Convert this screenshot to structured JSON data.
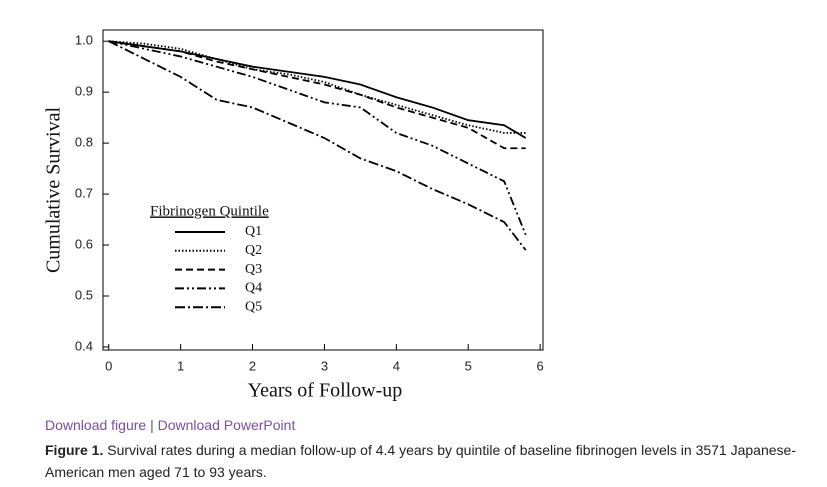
{
  "chart_data": {
    "type": "line",
    "x_label": "Years of Follow-up",
    "y_label": "Cumulative Survival",
    "legend_title": "Fibrinogen Quintile",
    "x": [
      0,
      0.5,
      1,
      1.5,
      2,
      2.5,
      3,
      3.5,
      4,
      4.5,
      5,
      5.5,
      5.8
    ],
    "series": [
      {
        "name": "Q1",
        "color": "#000000",
        "dash": "solid",
        "values": [
          1.0,
          0.99,
          0.98,
          0.965,
          0.95,
          0.94,
          0.93,
          0.915,
          0.89,
          0.87,
          0.845,
          0.835,
          0.81
        ]
      },
      {
        "name": "Q2",
        "color": "#000000",
        "dash": "dotted",
        "values": [
          1.0,
          0.995,
          0.985,
          0.965,
          0.945,
          0.935,
          0.92,
          0.895,
          0.875,
          0.855,
          0.835,
          0.82,
          0.82
        ]
      },
      {
        "name": "Q3",
        "color": "#000000",
        "dash": "dashed",
        "values": [
          1.0,
          0.99,
          0.98,
          0.96,
          0.945,
          0.93,
          0.915,
          0.895,
          0.87,
          0.85,
          0.83,
          0.79,
          0.79
        ]
      },
      {
        "name": "Q4",
        "color": "#000000",
        "dash": "dashdotdot",
        "values": [
          1.0,
          0.985,
          0.97,
          0.95,
          0.93,
          0.905,
          0.88,
          0.87,
          0.82,
          0.795,
          0.76,
          0.725,
          0.62
        ]
      },
      {
        "name": "Q5",
        "color": "#000000",
        "dash": "dashdot",
        "values": [
          1.0,
          0.965,
          0.93,
          0.885,
          0.87,
          0.84,
          0.81,
          0.77,
          0.745,
          0.71,
          0.68,
          0.645,
          0.59
        ]
      }
    ],
    "xlim": [
      -0.08,
      6.04
    ],
    "ylim": [
      0.394,
      1.022
    ],
    "xticks": [
      0,
      1,
      2,
      3,
      4,
      5,
      6
    ],
    "yticks": [
      0.4,
      0.5,
      0.6,
      0.7,
      0.8,
      0.9,
      {
        "value": 1,
        "label": "1.0"
      }
    ],
    "grid": false
  },
  "links": {
    "figure": "Download figure",
    "separator": "|",
    "powerpoint": "Download PowerPoint"
  },
  "caption": {
    "label": "Figure 1.",
    "text": "Survival rates during a median follow-up of 4.4 years by quintile of baseline fibrinogen levels in 3571 Japanese-American men aged 71 to 93 years."
  }
}
